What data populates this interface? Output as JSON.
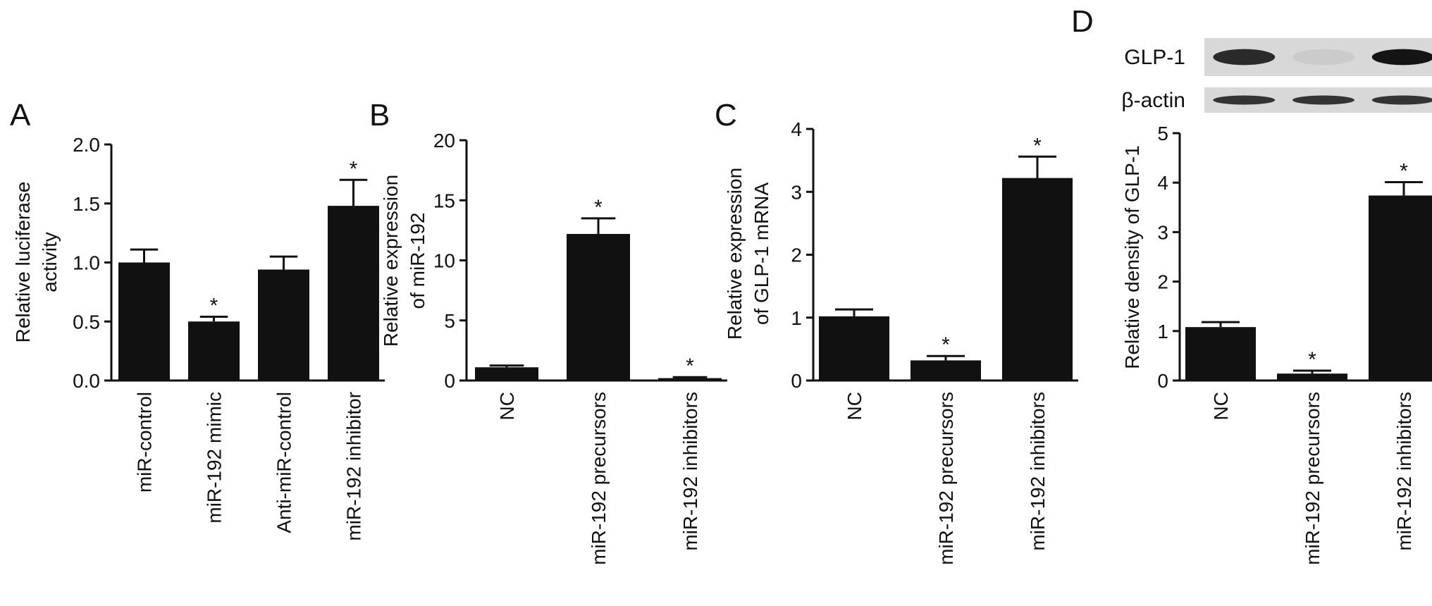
{
  "chart_data": [
    {
      "type": "bar",
      "panel": "A",
      "ylabel": [
        "Relative luciferase",
        "activity"
      ],
      "ylim": [
        0,
        2.0
      ],
      "yticks": [
        "0.0",
        "0.5",
        "1.0",
        "1.5",
        "2.0"
      ],
      "categories": [
        "miR-control",
        "miR-192 mimic",
        "Anti-miR-control",
        "miR-192 inhibitor"
      ],
      "values": [
        1.0,
        0.5,
        0.94,
        1.48
      ],
      "errors": [
        0.11,
        0.04,
        0.11,
        0.22
      ],
      "significance": [
        "",
        "*",
        "",
        "*"
      ]
    },
    {
      "type": "bar",
      "panel": "B",
      "ylabel": [
        "Relative expression",
        "of miR-192"
      ],
      "ylim": [
        0,
        20
      ],
      "yticks": [
        "0",
        "5",
        "10",
        "15",
        "20"
      ],
      "categories": [
        "NC",
        "miR-192 precursors",
        "miR-192 inhibitors"
      ],
      "values": [
        1.1,
        12.2,
        0.2
      ],
      "errors": [
        0.15,
        1.3,
        0.08
      ],
      "significance": [
        "",
        "*",
        "*"
      ]
    },
    {
      "type": "bar",
      "panel": "C",
      "ylabel": [
        "Relative expression",
        "of GLP-1 mRNA"
      ],
      "ylim": [
        0,
        4
      ],
      "yticks": [
        "0",
        "1",
        "2",
        "3",
        "4"
      ],
      "categories": [
        "NC",
        "miR-192 precursors",
        "miR-192 inhibitors"
      ],
      "values": [
        1.02,
        0.32,
        3.22
      ],
      "errors": [
        0.11,
        0.07,
        0.34
      ],
      "significance": [
        "",
        "*",
        "*"
      ]
    },
    {
      "type": "bar",
      "panel": "D",
      "ylabel": [
        "Relative density of GLP-1"
      ],
      "ylim": [
        0,
        5
      ],
      "yticks": [
        "0",
        "1",
        "2",
        "3",
        "4",
        "5"
      ],
      "categories": [
        "NC",
        "miR-192 precursors",
        "miR-192 inhibitors"
      ],
      "values": [
        1.08,
        0.14,
        3.74
      ],
      "errors": [
        0.1,
        0.06,
        0.27
      ],
      "significance": [
        "",
        "*",
        "*"
      ],
      "blot": {
        "rows": [
          "GLP-1",
          "β-actin"
        ],
        "intensities": [
          [
            0.9,
            0.15,
            1.0
          ],
          [
            0.85,
            0.85,
            0.85
          ]
        ]
      }
    }
  ]
}
